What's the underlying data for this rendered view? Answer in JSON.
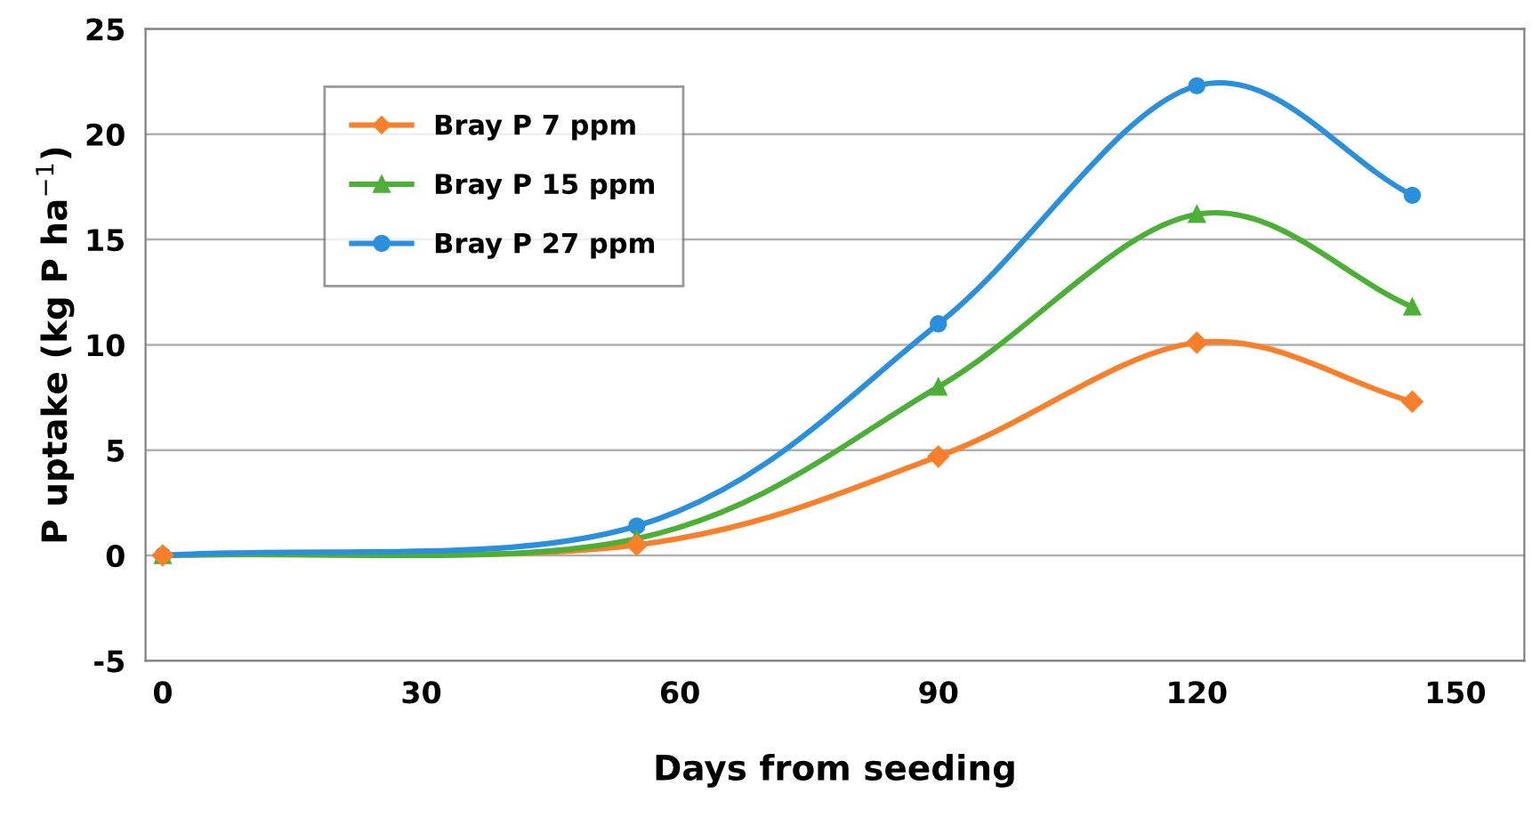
{
  "chart_data": {
    "type": "line",
    "xlabel": "Days from seeding",
    "ylabel": "P uptake (kg P ha$^{−1}$)",
    "x": [
      0,
      55,
      90,
      120,
      145
    ],
    "series": [
      {
        "name": "Bray P 7 ppm",
        "color": "#f97f2a",
        "marker": "diamond",
        "values": [
          0,
          0.5,
          4.7,
          10.1,
          7.3
        ]
      },
      {
        "name": "Bray P 15 ppm",
        "color": "#4caf36",
        "marker": "triangle",
        "values": [
          0,
          0.8,
          8.0,
          16.2,
          11.8
        ]
      },
      {
        "name": "Bray P 27 ppm",
        "color": "#2a8fdc",
        "marker": "circle",
        "values": [
          0,
          1.4,
          11.0,
          22.3,
          17.1
        ]
      }
    ],
    "xlim": [
      -2,
      158
    ],
    "xticks": [
      0,
      30,
      60,
      90,
      120,
      150
    ],
    "ylim": [
      -5,
      25
    ],
    "yticks": [
      -5,
      0,
      5,
      10,
      15,
      20,
      25
    ],
    "grid": "y",
    "legend": "top left",
    "line_style": "solid"
  }
}
